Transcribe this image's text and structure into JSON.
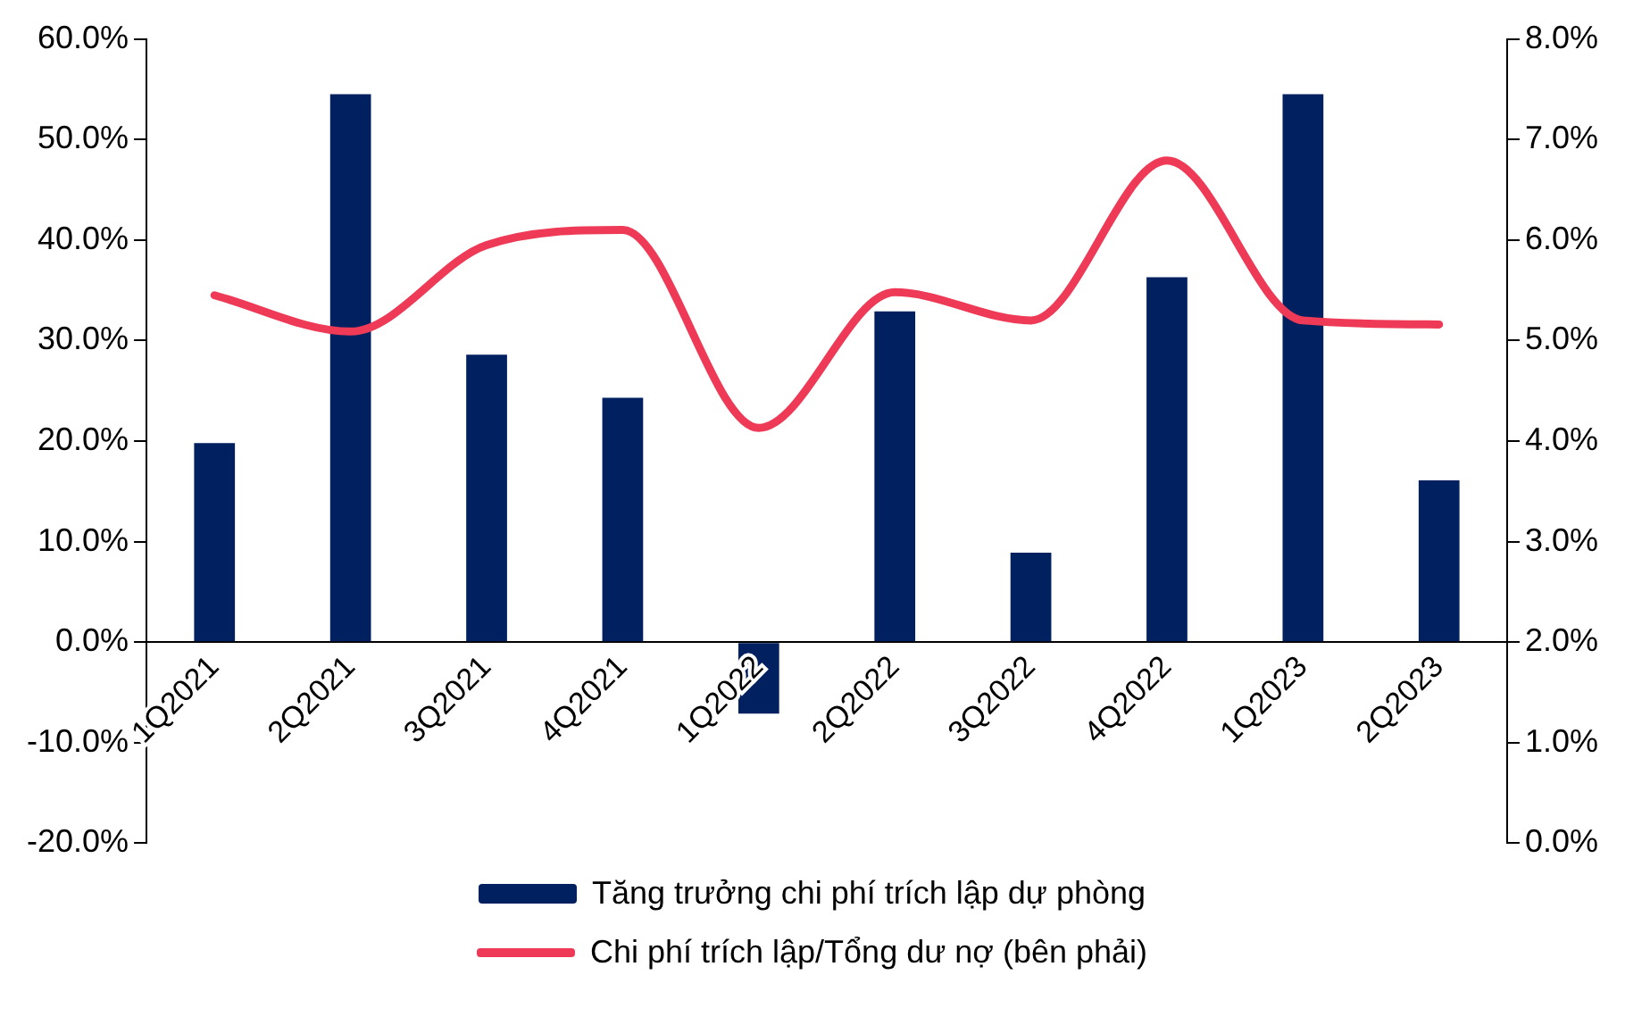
{
  "chart_data": {
    "type": "bar",
    "categories": [
      "1Q2021",
      "2Q2021",
      "3Q2021",
      "4Q2021",
      "1Q2022",
      "2Q2022",
      "3Q2022",
      "4Q2022",
      "1Q2023",
      "2Q2023"
    ],
    "series": [
      {
        "name": "Tăng trưởng chi phí trích lập dự phòng",
        "color": "#002060",
        "values": [
          19.8,
          54.5,
          28.6,
          24.3,
          -7.1,
          32.9,
          8.9,
          36.3,
          54.5,
          16.1
        ]
      },
      {
        "name": "Chi phí trích lập/Tổng dư nợ (bên phải)",
        "type": "line",
        "axis": "y2",
        "color": "#ee3a56",
        "values": [
          5.45,
          5.09,
          5.95,
          6.1,
          4.13,
          5.48,
          5.2,
          6.79,
          5.2,
          5.16
        ]
      }
    ],
    "ylim": [
      -20,
      60
    ],
    "yticks": [
      {
        "value": -20,
        "label": "-20.0%"
      },
      {
        "value": -10,
        "label": "-10.0%"
      },
      {
        "value": 0,
        "label": "0.0%"
      },
      {
        "value": 10,
        "label": "10.0%"
      },
      {
        "value": 20,
        "label": "20.0%"
      },
      {
        "value": 30,
        "label": "30.0%"
      },
      {
        "value": 40,
        "label": "40.0%"
      },
      {
        "value": 50,
        "label": "50.0%"
      },
      {
        "value": 60,
        "label": "60.0%"
      }
    ],
    "y2lim": [
      0,
      8
    ],
    "y2ticks": [
      {
        "value": 0,
        "label": "0.0%"
      },
      {
        "value": 1,
        "label": "1.0%"
      },
      {
        "value": 2,
        "label": "2.0%"
      },
      {
        "value": 3,
        "label": "3.0%"
      },
      {
        "value": 4,
        "label": "4.0%"
      },
      {
        "value": 5,
        "label": "5.0%"
      },
      {
        "value": 6,
        "label": "6.0%"
      },
      {
        "value": 7,
        "label": "7.0%"
      },
      {
        "value": 8,
        "label": "8.0%"
      }
    ],
    "grid": false,
    "legend": "bottom",
    "marker": "none"
  }
}
